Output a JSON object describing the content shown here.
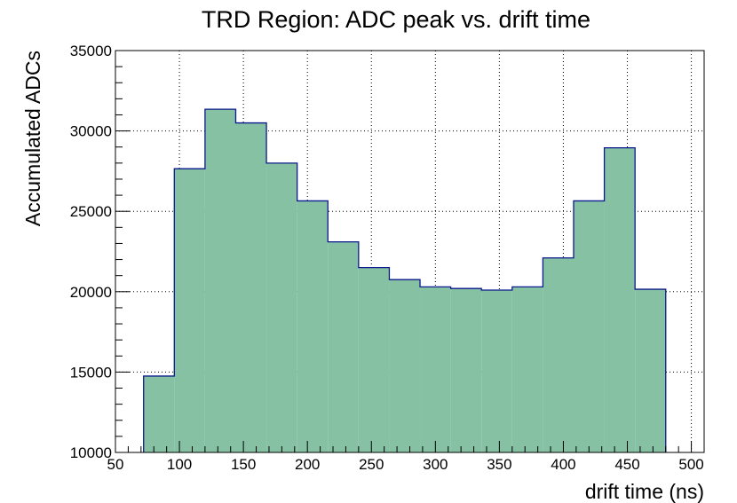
{
  "chart_data": {
    "type": "bar",
    "title": "TRD Region: ADC peak vs. drift time",
    "xlabel": "drift time (ns)",
    "ylabel": "Accumulated ADCs",
    "xlim": [
      50,
      510
    ],
    "ylim": [
      10000,
      35000
    ],
    "x_ticks": [
      50,
      100,
      150,
      200,
      250,
      300,
      350,
      400,
      450,
      500
    ],
    "y_ticks": [
      10000,
      15000,
      20000,
      25000,
      30000,
      35000
    ],
    "x_tick_labels": [
      "50",
      "100",
      "150",
      "200",
      "250",
      "300",
      "350",
      "400",
      "450",
      "500"
    ],
    "y_tick_labels": [
      "10000",
      "15000",
      "20000",
      "25000",
      "30000",
      "35000"
    ],
    "grid": true,
    "bin_edges": [
      72,
      96,
      120,
      144,
      168,
      192,
      216,
      240,
      264,
      288,
      312,
      336,
      360,
      384,
      408,
      432,
      456,
      480
    ],
    "values": [
      14750,
      27650,
      31350,
      30500,
      28000,
      25650,
      23100,
      21500,
      20750,
      20300,
      20200,
      20100,
      20300,
      22100,
      25650,
      28950,
      20150
    ],
    "fill_color": "#86c1a4",
    "line_color": "#0b1a8c"
  }
}
